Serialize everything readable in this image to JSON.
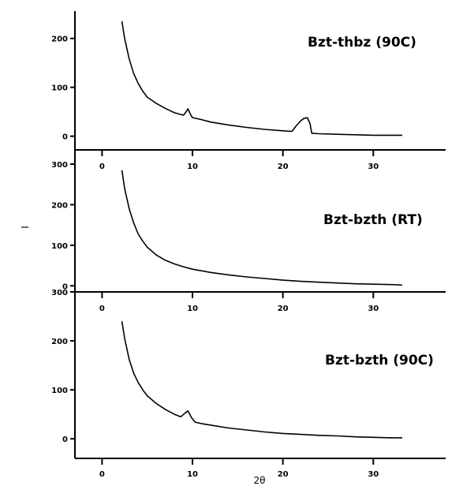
{
  "chart_data": [
    {
      "type": "line",
      "label": "Bzt-thbz (90C)",
      "xlabel": "2θ",
      "ylabel": "I",
      "xlim": [
        -3,
        38
      ],
      "ylim": [
        -28,
        256
      ],
      "yticks": [
        0,
        100,
        200
      ],
      "xticks": [
        0,
        10,
        20,
        30
      ],
      "x_tick_labels": [
        "0",
        "10",
        "20",
        "30"
      ],
      "x": [
        2.2,
        2.5,
        3,
        3.5,
        4,
        4.5,
        5,
        6,
        7,
        8,
        9,
        9.3,
        9.5,
        9.8,
        10,
        11,
        12,
        14,
        16,
        18,
        20,
        21,
        21.5,
        22,
        22.3,
        22.7,
        23,
        23.2,
        24,
        26,
        28,
        30,
        32,
        33.2
      ],
      "y": [
        235,
        200,
        158,
        128,
        108,
        92,
        80,
        67,
        57,
        48,
        43,
        50,
        56,
        44,
        38,
        34,
        29,
        23,
        18,
        14,
        11,
        10,
        22,
        32,
        36,
        38,
        26,
        6,
        5,
        4,
        3,
        2,
        2,
        2
      ]
    },
    {
      "type": "line",
      "label": "Bzt-bzth (RT)",
      "xlabel": "",
      "ylabel": "",
      "xlim": [
        -3,
        38
      ],
      "ylim": [
        -15,
        335
      ],
      "yticks": [
        0,
        100,
        200,
        300
      ],
      "xticks": [
        0,
        10,
        20,
        30
      ],
      "x_tick_labels": [
        "0",
        "10",
        "20",
        "30"
      ],
      "x": [
        2.2,
        2.5,
        3,
        3.5,
        4,
        4.5,
        5,
        6,
        7,
        8,
        9,
        10,
        12,
        14,
        16,
        18,
        20,
        22,
        24,
        26,
        28,
        30,
        32,
        33.2
      ],
      "y": [
        285,
        240,
        190,
        155,
        128,
        110,
        95,
        76,
        63,
        54,
        47,
        41,
        33,
        27,
        22,
        18,
        14,
        11,
        9,
        7,
        5,
        4,
        3,
        2
      ]
    },
    {
      "type": "line",
      "label": "Bzt-bzth (90C)",
      "xlabel": "",
      "ylabel": "",
      "xlim": [
        -3,
        38
      ],
      "ylim": [
        -40,
        300
      ],
      "yticks": [
        0,
        100,
        200,
        300
      ],
      "xticks": [
        0,
        10,
        20,
        30
      ],
      "x_tick_labels": [
        "0",
        "10",
        "20",
        "30"
      ],
      "x": [
        2.2,
        2.5,
        3,
        3.5,
        4,
        4.5,
        5,
        6,
        7,
        8,
        8.7,
        9.2,
        9.5,
        9.9,
        10.3,
        11,
        12,
        14,
        16,
        18,
        20,
        22,
        24,
        26,
        28,
        30,
        32,
        33.2
      ],
      "y": [
        240,
        205,
        162,
        134,
        115,
        100,
        88,
        72,
        60,
        50,
        45,
        53,
        57,
        43,
        34,
        31,
        28,
        22,
        18,
        14,
        11,
        9,
        7,
        6,
        4,
        3,
        2,
        2
      ]
    }
  ]
}
